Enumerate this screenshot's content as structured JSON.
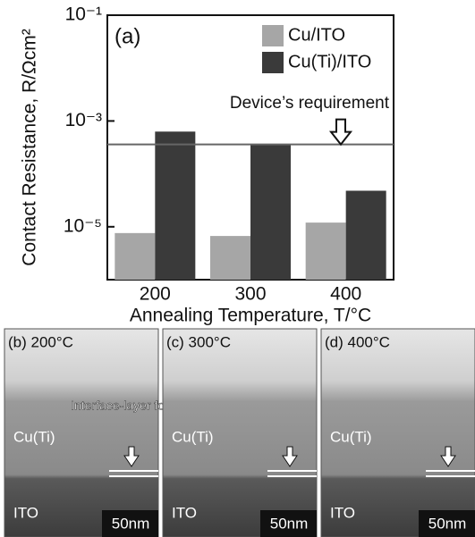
{
  "chart_data": {
    "type": "bar",
    "panel_label": "(a)",
    "x_label": "Annealing Temperature, T/°C",
    "y_label": "Contact Resistance, R/Ωcm²",
    "categories": [
      "200",
      "300",
      "400"
    ],
    "series": [
      {
        "name": "Cu/ITO",
        "color": "#a6a6a6",
        "values": [
          7.6e-06,
          6.7e-06,
          1.2e-05
        ]
      },
      {
        "name": "Cu(Ti)/ITO",
        "color": "#3a3a3a",
        "values": [
          0.00063,
          0.00036,
          4.8e-05
        ]
      }
    ],
    "log_scale": true,
    "ylim": [
      1e-06,
      0.1
    ],
    "yticks": [
      {
        "value": 0.1,
        "label": "10⁻¹"
      },
      {
        "value": 0.001,
        "label": "10⁻³"
      },
      {
        "value": 1e-05,
        "label": "10⁻⁵"
      }
    ],
    "threshold": {
      "value": 0.00036,
      "label": "Device’s requirement"
    },
    "legend": "top-right"
  },
  "panels": [
    {
      "title": "(b) 200°C",
      "upper": "Cu(Ti)",
      "lower": "ITO",
      "scale": "50nm",
      "note": "Interface-layer formation"
    },
    {
      "title": "(c) 300°C",
      "upper": "Cu(Ti)",
      "lower": "ITO",
      "scale": "50nm"
    },
    {
      "title": "(d) 400°C",
      "upper": "Cu(Ti)",
      "lower": "ITO",
      "scale": "50nm"
    }
  ]
}
